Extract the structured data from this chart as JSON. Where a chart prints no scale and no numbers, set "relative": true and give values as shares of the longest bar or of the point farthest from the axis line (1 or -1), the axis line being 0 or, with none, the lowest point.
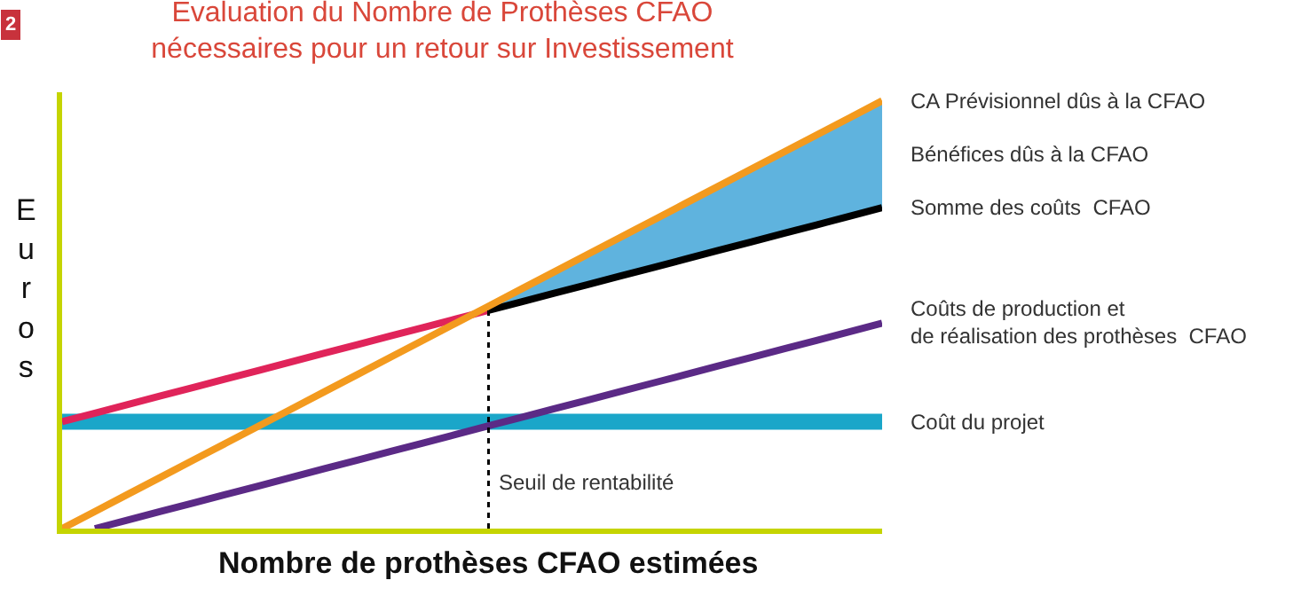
{
  "chart_data": {
    "type": "line",
    "relative": true,
    "title": "Evaluation du Nombre de Prothèses CFAO\nnécessaires pour un retour sur Investissement",
    "xlabel": "Nombre de prothèses CFAO estimées",
    "ylabel": "Euros",
    "categories": [
      null,
      null,
      null,
      null,
      null,
      null,
      null,
      null,
      null,
      null,
      null,
      null,
      null,
      null,
      null,
      null,
      null,
      null,
      null,
      null,
      null,
      null,
      null,
      null,
      null,
      null
    ],
    "marker": "none",
    "line_style": "solid",
    "annotations": [
      "2",
      "Seuil de rentabilité"
    ],
    "series": [
      {
        "name": "Coût du projet",
        "color": "#1aa6c9",
        "values": [
          0.25,
          0.25,
          0.25,
          0.25,
          0.25,
          0.25,
          0.25,
          0.25,
          0.25,
          0.25,
          0.25,
          0.25,
          0.25,
          0.25,
          0.25,
          0.25,
          0.25,
          0.25,
          0.25,
          0.25,
          0.25,
          0.25,
          0.25,
          0.25,
          0.25,
          0.25
        ]
      },
      {
        "name": "Coûts de production et\nde réalisation des prothèses  CFAO",
        "color": "#5b2a86",
        "values": [
          null,
          0,
          0.02,
          0.04,
          0.06,
          0.08,
          0.1,
          0.12,
          0.14,
          0.16,
          0.18,
          0.2,
          0.22,
          0.24,
          0.26,
          0.28,
          0.3,
          0.32,
          0.34,
          0.36,
          0.38,
          0.4,
          0.42,
          0.44,
          0.46,
          0.48
        ]
      },
      {
        "color": "#e0245a",
        "values": [
          0.25,
          0.27,
          0.29,
          0.31,
          0.33,
          0.35,
          0.37,
          0.39,
          0.41,
          0.43,
          0.45,
          0.47,
          0.49,
          0.51,
          null,
          null,
          null,
          null,
          null,
          null,
          null,
          null,
          null,
          null,
          null,
          null
        ]
      },
      {
        "name": "Somme des coûts  CFAO",
        "color": "#000000",
        "values": [
          null,
          null,
          null,
          null,
          null,
          null,
          null,
          null,
          null,
          null,
          null,
          null,
          null,
          0.51,
          0.53,
          0.55,
          0.57,
          0.59,
          0.61,
          0.63,
          0.65,
          0.67,
          0.69,
          0.71,
          0.73,
          0.75
        ]
      },
      {
        "name": "Bénéfices dûs à la CFAO",
        "type": "area",
        "color": "#5fb3de",
        "values": [
          null,
          null,
          null,
          null,
          null,
          null,
          null,
          null,
          null,
          null,
          null,
          null,
          null,
          0.52,
          0.56,
          0.6,
          0.64,
          0.68,
          0.72,
          0.76,
          0.8,
          0.84,
          0.88,
          0.92,
          0.96,
          1
        ]
      },
      {
        "name": "CA Prévisionnel dûs à la CFAO",
        "color": "#f39a1e",
        "values": [
          0,
          0.04,
          0.08,
          0.12,
          0.16,
          0.2,
          0.24,
          0.28,
          0.32,
          0.36,
          0.4,
          0.44,
          0.48,
          0.52,
          0.56,
          0.6,
          0.64,
          0.68,
          0.72,
          0.76,
          0.8,
          0.84,
          0.88,
          0.92,
          0.96,
          1
        ]
      }
    ]
  }
}
